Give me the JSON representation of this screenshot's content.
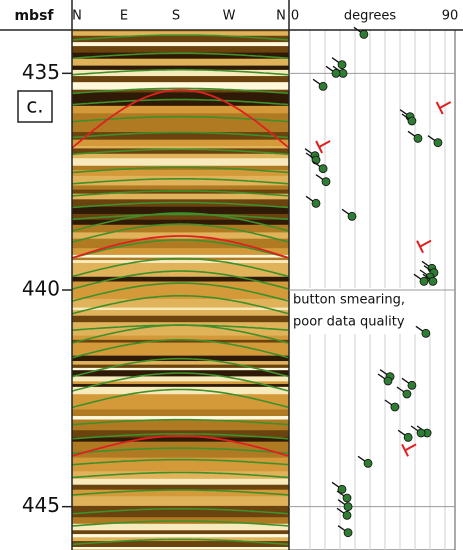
{
  "chart_data": {
    "type": "scatter",
    "y_label": "mbsf",
    "x_label": "degrees",
    "panel_label": "c.",
    "image_labels": [
      "N",
      "E",
      "S",
      "W",
      "N"
    ],
    "annotation": [
      "button smearing,",
      "poor data quality"
    ],
    "xlim": [
      0,
      90
    ],
    "xticks": [
      0,
      90
    ],
    "ylim": [
      434,
      446
    ],
    "yticks": [
      435,
      440,
      445
    ],
    "y_inverted": true,
    "grid": true,
    "series": [
      {
        "color": "#2e7d32",
        "marker": "tadpole",
        "x": [
          40,
          27.3,
          27.9,
          23.8,
          16.3,
          66.8,
          67.9,
          71.4,
          83,
          11.6,
          12.2,
          16.3,
          18,
          12.2,
          33.1,
          79.5,
          80.7,
          78.4,
          80.1,
          74.9,
          76,
          55.2,
          54,
          67.9,
          65,
          58,
          76.7,
          73.2,
          65.7,
          42.4,
          27.3,
          30.2,
          30.8,
          30.2,
          30.8
        ],
        "values": [
          434.1,
          434.8,
          435,
          435,
          435.3,
          436,
          436.1,
          436.5,
          436.6,
          436.9,
          437,
          437.2,
          437.5,
          438,
          438.3,
          439.5,
          439.6,
          439.7,
          439.8,
          439.8,
          441,
          442,
          442.1,
          442.2,
          442.4,
          442.7,
          443.3,
          443.3,
          443.4,
          444,
          444.6,
          444.8,
          445,
          445.2,
          445.6
        ]
      },
      {
        "color": "#e02020",
        "marker": "tee",
        "x": [
          84,
          14,
          72.6,
          63.9
        ],
        "values": [
          435.8,
          436.7,
          439,
          443.7
        ]
      }
    ]
  }
}
